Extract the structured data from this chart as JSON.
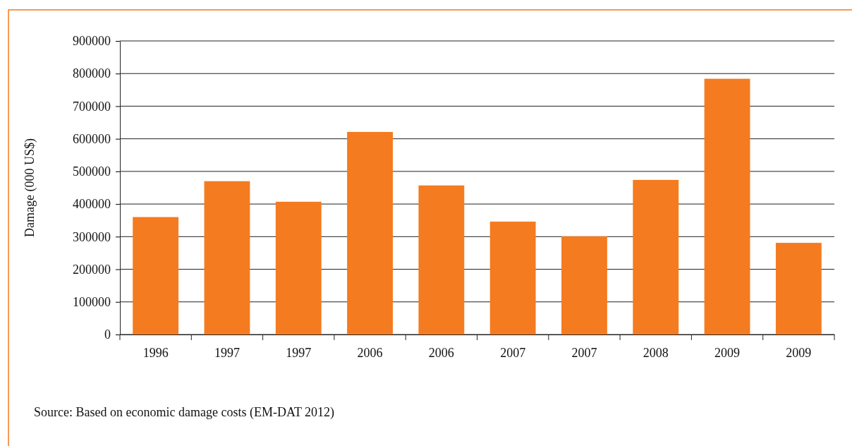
{
  "chart_data": {
    "type": "bar",
    "ylabel": "Damage (000 US$)",
    "categories": [
      "1996",
      "1997",
      "1997",
      "2006",
      "2006",
      "2007",
      "2007",
      "2008",
      "2009",
      "2009"
    ],
    "values": [
      360000,
      470000,
      407000,
      621000,
      457000,
      346000,
      301000,
      474000,
      784000,
      281000
    ],
    "color": "#f47b20",
    "ylim": [
      0,
      900000
    ],
    "yticks": [
      0,
      100000,
      200000,
      300000,
      400000,
      500000,
      600000,
      700000,
      800000,
      900000
    ],
    "grid": "y",
    "annotations": [
      "Source: Based on economic damage costs (EM-DAT 2012)"
    ]
  }
}
